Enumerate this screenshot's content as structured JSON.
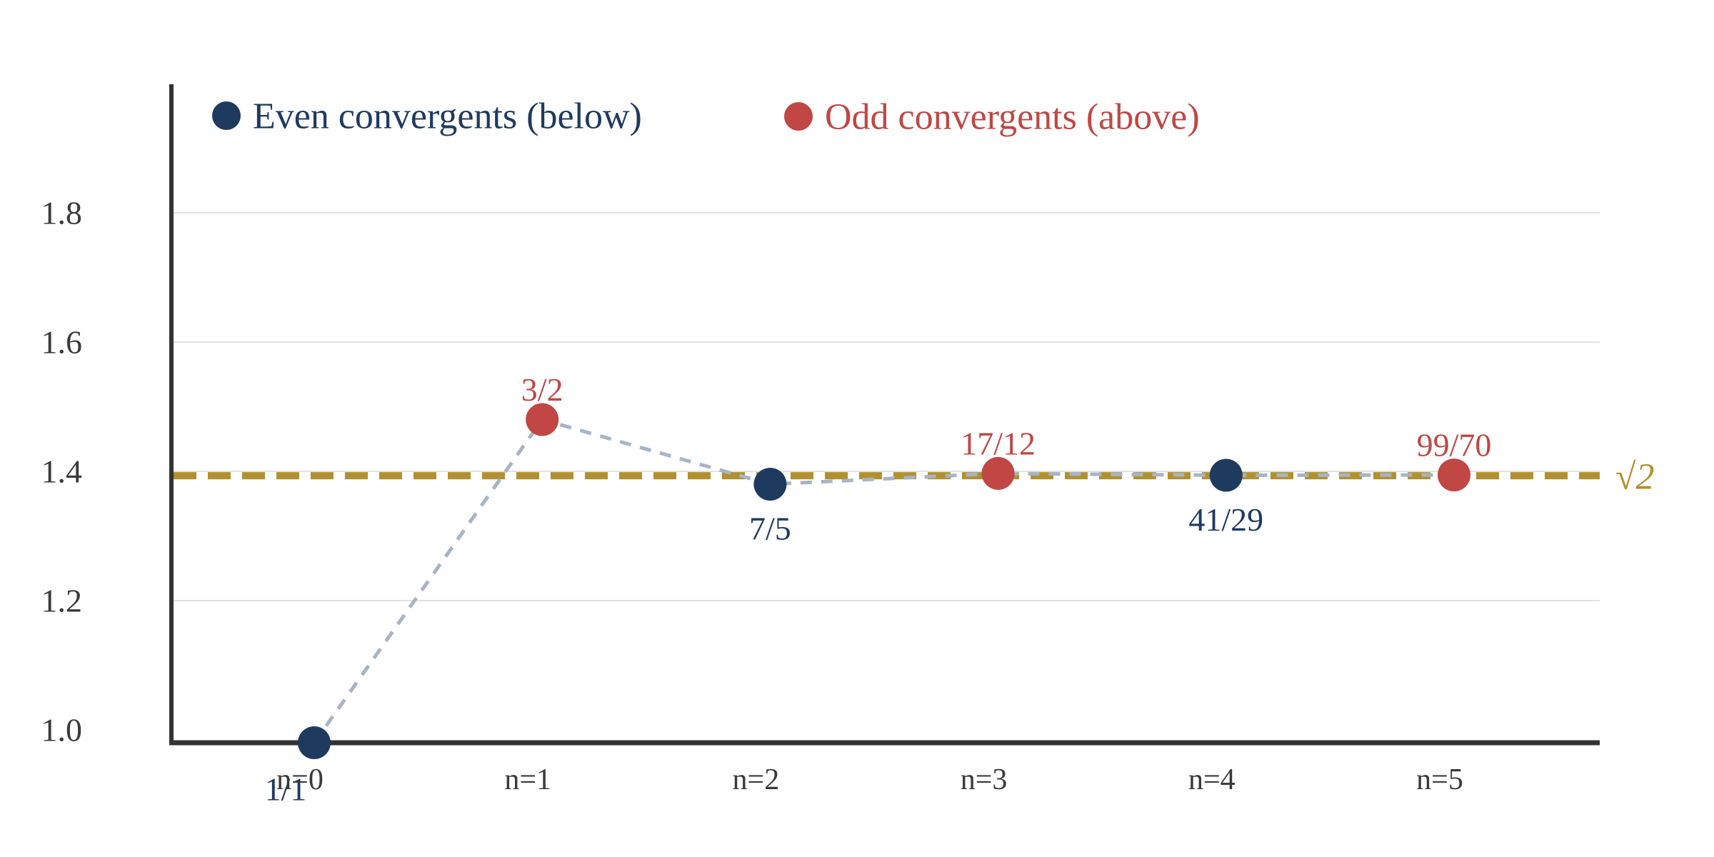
{
  "chart_data": {
    "type": "scatter",
    "title": "",
    "xlabel": "",
    "ylabel": "",
    "x_tick_labels": [
      "n=0",
      "n=1",
      "n=2",
      "n=3",
      "n=4",
      "n=5"
    ],
    "y_tick_labels": [
      "1.0",
      "1.2",
      "1.4",
      "1.6",
      "1.8"
    ],
    "ylim": [
      0.99,
      2.02
    ],
    "grid": "horizontal-only",
    "grid_color": "#e2e2e2",
    "axis_color": "#333333",
    "tick_text_color": "#3a3a3a",
    "legend_position": "top-inside",
    "series": [
      {
        "name": "Even convergents (below)",
        "color": "#1f3a5f",
        "label_side": "below",
        "points": [
          {
            "n": 0,
            "fraction": "1/1",
            "value": 1.0
          },
          {
            "n": 2,
            "fraction": "7/5",
            "value": 1.4
          },
          {
            "n": 4,
            "fraction": "41/29",
            "value": 1.4137931
          }
        ]
      },
      {
        "name": "Odd convergents (above)",
        "color": "#c04744",
        "label_side": "above",
        "points": [
          {
            "n": 1,
            "fraction": "3/2",
            "value": 1.5
          },
          {
            "n": 3,
            "fraction": "17/12",
            "value": 1.4166667
          },
          {
            "n": 5,
            "fraction": "99/70",
            "value": 1.4142857
          }
        ]
      }
    ],
    "connector": {
      "color": "#a8b4c5",
      "style": "dashed",
      "description": "dashed polyline connecting convergents in order of n"
    },
    "reference_line": {
      "label": "√2",
      "value": 1.4142136,
      "color": "#b1902f",
      "style": "dashed"
    }
  }
}
